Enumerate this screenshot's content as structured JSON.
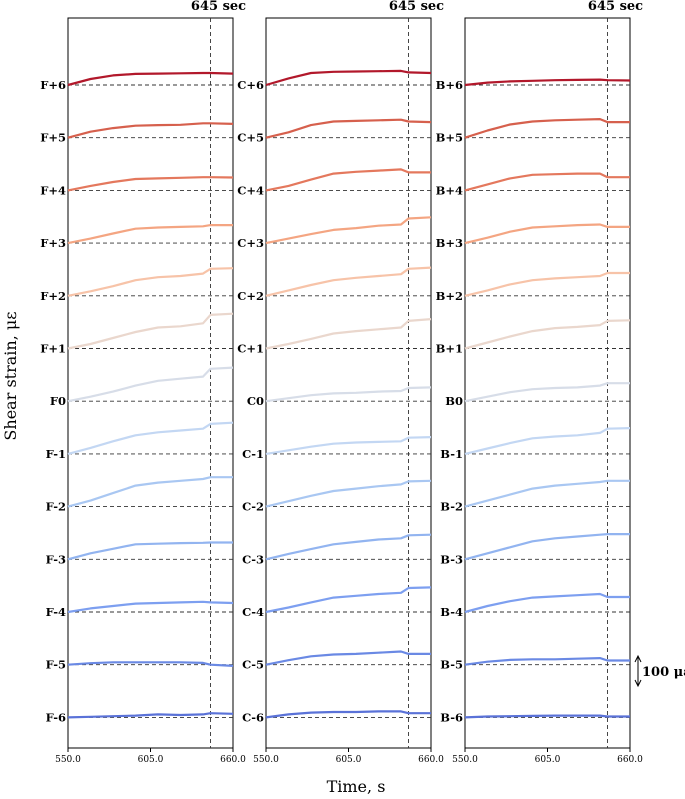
{
  "chart_data": {
    "type": "line",
    "ylabel": "Shear strain, με",
    "xlabel": "Time, s",
    "xlim": [
      550,
      660
    ],
    "x_ticks": [
      "550.0",
      "605.0",
      "660.0"
    ],
    "event_time": 645,
    "event_label": "645 sec",
    "scale_bar_value": 100,
    "scale_bar_label": "100 με",
    "grid": false,
    "colors": [
      "#b2182b",
      "#d6604d",
      "#e4785d",
      "#f4a582",
      "#f7c3a8",
      "#ead7cd",
      "#d7dde8",
      "#c3d7f3",
      "#a9c7f2",
      "#92b4f0",
      "#7d9ff0",
      "#6a89e4",
      "#5a72d8"
    ],
    "panels": [
      {
        "id": "F",
        "series": [
          {
            "name": "F+6",
            "x": [
              550,
              565,
              580,
              595,
              610,
              625,
              640,
              645,
              660
            ],
            "y": [
              0,
              20,
              32,
              37,
              38,
              39,
              40,
              40,
              38
            ],
            "drop": 0
          },
          {
            "name": "F+5",
            "x": [
              550,
              565,
              580,
              595,
              610,
              625,
              640,
              645,
              660
            ],
            "y": [
              0,
              20,
              32,
              40,
              42,
              43,
              48,
              48,
              46
            ],
            "drop": -2
          },
          {
            "name": "F+4",
            "x": [
              550,
              565,
              580,
              595,
              610,
              625,
              640,
              645,
              660
            ],
            "y": [
              0,
              15,
              28,
              38,
              40,
              42,
              44,
              44,
              43
            ],
            "drop": -2
          },
          {
            "name": "F+3",
            "x": [
              550,
              565,
              580,
              595,
              610,
              625,
              640,
              645,
              660
            ],
            "y": [
              0,
              15,
              32,
              48,
              52,
              54,
              56,
              60,
              60
            ],
            "drop": 0
          },
          {
            "name": "F+2",
            "x": [
              550,
              565,
              580,
              595,
              610,
              625,
              640,
              645,
              660
            ],
            "y": [
              0,
              15,
              32,
              52,
              62,
              66,
              74,
              90,
              92
            ],
            "drop": 0
          },
          {
            "name": "F+1",
            "x": [
              550,
              565,
              580,
              595,
              610,
              625,
              640,
              645,
              660
            ],
            "y": [
              0,
              15,
              35,
              55,
              70,
              74,
              84,
              112,
              116
            ],
            "drop": 0
          },
          {
            "name": "F0",
            "x": [
              550,
              565,
              580,
              595,
              610,
              625,
              640,
              645,
              660
            ],
            "y": [
              0,
              15,
              32,
              52,
              68,
              75,
              82,
              108,
              112
            ],
            "drop": 0
          },
          {
            "name": "F-1",
            "x": [
              550,
              565,
              580,
              595,
              610,
              625,
              640,
              645,
              660
            ],
            "y": [
              0,
              20,
              42,
              62,
              72,
              78,
              84,
              100,
              104
            ],
            "drop": 0
          },
          {
            "name": "F-2",
            "x": [
              550,
              565,
              580,
              595,
              610,
              625,
              640,
              645,
              660
            ],
            "y": [
              0,
              20,
              45,
              70,
              80,
              86,
              92,
              98,
              98
            ],
            "drop": 0
          },
          {
            "name": "F-3",
            "x": [
              550,
              565,
              580,
              595,
              610,
              625,
              640,
              645,
              660
            ],
            "y": [
              0,
              20,
              35,
              50,
              52,
              54,
              55,
              56,
              56
            ],
            "drop": 0
          },
          {
            "name": "F-4",
            "x": [
              550,
              565,
              580,
              595,
              610,
              625,
              640,
              645,
              660
            ],
            "y": [
              0,
              12,
              20,
              28,
              30,
              32,
              34,
              32,
              30
            ],
            "drop": -2
          },
          {
            "name": "F-5",
            "x": [
              550,
              565,
              580,
              595,
              610,
              625,
              640,
              645,
              660
            ],
            "y": [
              0,
              5,
              8,
              8,
              8,
              8,
              6,
              0,
              -4
            ],
            "drop": 0
          },
          {
            "name": "F-6",
            "x": [
              550,
              565,
              580,
              595,
              610,
              625,
              640,
              645,
              660
            ],
            "y": [
              0,
              2,
              4,
              6,
              10,
              8,
              10,
              14,
              12
            ],
            "drop": 0
          }
        ]
      },
      {
        "id": "C",
        "series": [
          {
            "name": "C+6",
            "x": [
              550,
              565,
              580,
              595,
              610,
              625,
              640,
              645,
              660
            ],
            "y": [
              0,
              22,
              40,
              44,
              45,
              46,
              47,
              42,
              40
            ],
            "drop": -2
          },
          {
            "name": "C+5",
            "x": [
              550,
              565,
              580,
              595,
              610,
              625,
              640,
              645,
              660
            ],
            "y": [
              0,
              18,
              42,
              54,
              56,
              58,
              60,
              54,
              52
            ],
            "drop": -2
          },
          {
            "name": "C+4",
            "x": [
              550,
              565,
              580,
              595,
              610,
              625,
              640,
              645,
              660
            ],
            "y": [
              0,
              15,
              36,
              56,
              62,
              66,
              70,
              60,
              60
            ],
            "drop": -2
          },
          {
            "name": "C+3",
            "x": [
              550,
              565,
              580,
              595,
              610,
              625,
              640,
              645,
              660
            ],
            "y": [
              0,
              15,
              30,
              44,
              50,
              58,
              62,
              82,
              86
            ],
            "drop": 0
          },
          {
            "name": "C+2",
            "x": [
              550,
              565,
              580,
              595,
              610,
              625,
              640,
              645,
              660
            ],
            "y": [
              0,
              18,
              36,
              52,
              60,
              66,
              72,
              90,
              94
            ],
            "drop": 0
          },
          {
            "name": "C+1",
            "x": [
              550,
              565,
              580,
              595,
              610,
              625,
              640,
              645,
              660
            ],
            "y": [
              0,
              15,
              32,
              50,
              58,
              64,
              70,
              92,
              98
            ],
            "drop": 0
          },
          {
            "name": "C0",
            "x": [
              550,
              565,
              580,
              595,
              610,
              625,
              640,
              645,
              660
            ],
            "y": [
              0,
              10,
              20,
              26,
              28,
              32,
              34,
              44,
              46
            ],
            "drop": 0
          },
          {
            "name": "C-1",
            "x": [
              550,
              565,
              580,
              595,
              610,
              625,
              640,
              645,
              660
            ],
            "y": [
              0,
              12,
              24,
              34,
              38,
              40,
              42,
              54,
              56
            ],
            "drop": 0
          },
          {
            "name": "C-2",
            "x": [
              550,
              565,
              580,
              595,
              610,
              625,
              640,
              645,
              660
            ],
            "y": [
              0,
              18,
              36,
              52,
              60,
              68,
              74,
              84,
              86
            ],
            "drop": 0
          },
          {
            "name": "C-3",
            "x": [
              550,
              565,
              580,
              595,
              610,
              625,
              640,
              645,
              660
            ],
            "y": [
              0,
              18,
              34,
              50,
              58,
              66,
              70,
              80,
              82
            ],
            "drop": 0
          },
          {
            "name": "C-4",
            "x": [
              550,
              565,
              580,
              595,
              610,
              625,
              640,
              645,
              660
            ],
            "y": [
              0,
              15,
              32,
              48,
              54,
              60,
              64,
              80,
              82
            ],
            "drop": 0
          },
          {
            "name": "C-5",
            "x": [
              550,
              565,
              580,
              595,
              610,
              625,
              640,
              645,
              660
            ],
            "y": [
              0,
              15,
              28,
              34,
              36,
              40,
              44,
              36,
              36
            ],
            "drop": 0
          },
          {
            "name": "C-6",
            "x": [
              550,
              565,
              580,
              595,
              610,
              625,
              640,
              645,
              660
            ],
            "y": [
              0,
              10,
              16,
              18,
              18,
              20,
              20,
              14,
              14
            ],
            "drop": 0
          }
        ]
      },
      {
        "id": "B",
        "series": [
          {
            "name": "B+6",
            "x": [
              550,
              565,
              580,
              595,
              610,
              625,
              640,
              645,
              660
            ],
            "y": [
              0,
              8,
              12,
              14,
              16,
              17,
              18,
              16,
              15
            ],
            "drop": 0
          },
          {
            "name": "B+5",
            "x": [
              550,
              565,
              580,
              595,
              610,
              625,
              640,
              645,
              660
            ],
            "y": [
              0,
              24,
              44,
              54,
              58,
              60,
              62,
              52,
              52
            ],
            "drop": 0
          },
          {
            "name": "B+4",
            "x": [
              550,
              565,
              580,
              595,
              610,
              625,
              640,
              645,
              660
            ],
            "y": [
              0,
              20,
              40,
              52,
              54,
              56,
              56,
              44,
              44
            ],
            "drop": 0
          },
          {
            "name": "B+3",
            "x": [
              550,
              565,
              580,
              595,
              610,
              625,
              640,
              645,
              660
            ],
            "y": [
              0,
              18,
              38,
              52,
              56,
              60,
              62,
              54,
              54
            ],
            "drop": 0
          },
          {
            "name": "B+2",
            "x": [
              550,
              565,
              580,
              595,
              610,
              625,
              640,
              645,
              660
            ],
            "y": [
              0,
              18,
              38,
              52,
              58,
              62,
              66,
              76,
              76
            ],
            "drop": 0
          },
          {
            "name": "B+1",
            "x": [
              550,
              565,
              580,
              595,
              610,
              625,
              640,
              645,
              660
            ],
            "y": [
              0,
              20,
              40,
              58,
              68,
              72,
              78,
              92,
              94
            ],
            "drop": 0
          },
          {
            "name": "B0",
            "x": [
              550,
              565,
              580,
              595,
              610,
              625,
              640,
              645,
              660
            ],
            "y": [
              0,
              15,
              30,
              40,
              44,
              46,
              52,
              60,
              60
            ],
            "drop": 0
          },
          {
            "name": "B-1",
            "x": [
              550,
              565,
              580,
              595,
              610,
              625,
              640,
              645,
              660
            ],
            "y": [
              0,
              18,
              36,
              52,
              58,
              62,
              70,
              84,
              86
            ],
            "drop": 0
          },
          {
            "name": "B-2",
            "x": [
              550,
              565,
              580,
              595,
              610,
              625,
              640,
              645,
              660
            ],
            "y": [
              0,
              20,
              40,
              60,
              70,
              76,
              82,
              86,
              86
            ],
            "drop": 0
          },
          {
            "name": "B-3",
            "x": [
              550,
              565,
              580,
              595,
              610,
              625,
              640,
              645,
              660
            ],
            "y": [
              0,
              20,
              40,
              60,
              70,
              76,
              82,
              84,
              84
            ],
            "drop": 0
          },
          {
            "name": "B-4",
            "x": [
              550,
              565,
              580,
              595,
              610,
              625,
              640,
              645,
              660
            ],
            "y": [
              0,
              20,
              36,
              48,
              52,
              56,
              60,
              50,
              50
            ],
            "drop": 0
          },
          {
            "name": "B-5",
            "x": [
              550,
              565,
              580,
              595,
              610,
              625,
              640,
              645,
              660
            ],
            "y": [
              0,
              10,
              16,
              18,
              18,
              20,
              22,
              14,
              14
            ],
            "drop": 0
          },
          {
            "name": "B-6",
            "x": [
              550,
              565,
              580,
              595,
              610,
              625,
              640,
              645,
              660
            ],
            "y": [
              0,
              3,
              4,
              5,
              6,
              6,
              6,
              3,
              3
            ],
            "drop": 0
          }
        ]
      }
    ]
  }
}
